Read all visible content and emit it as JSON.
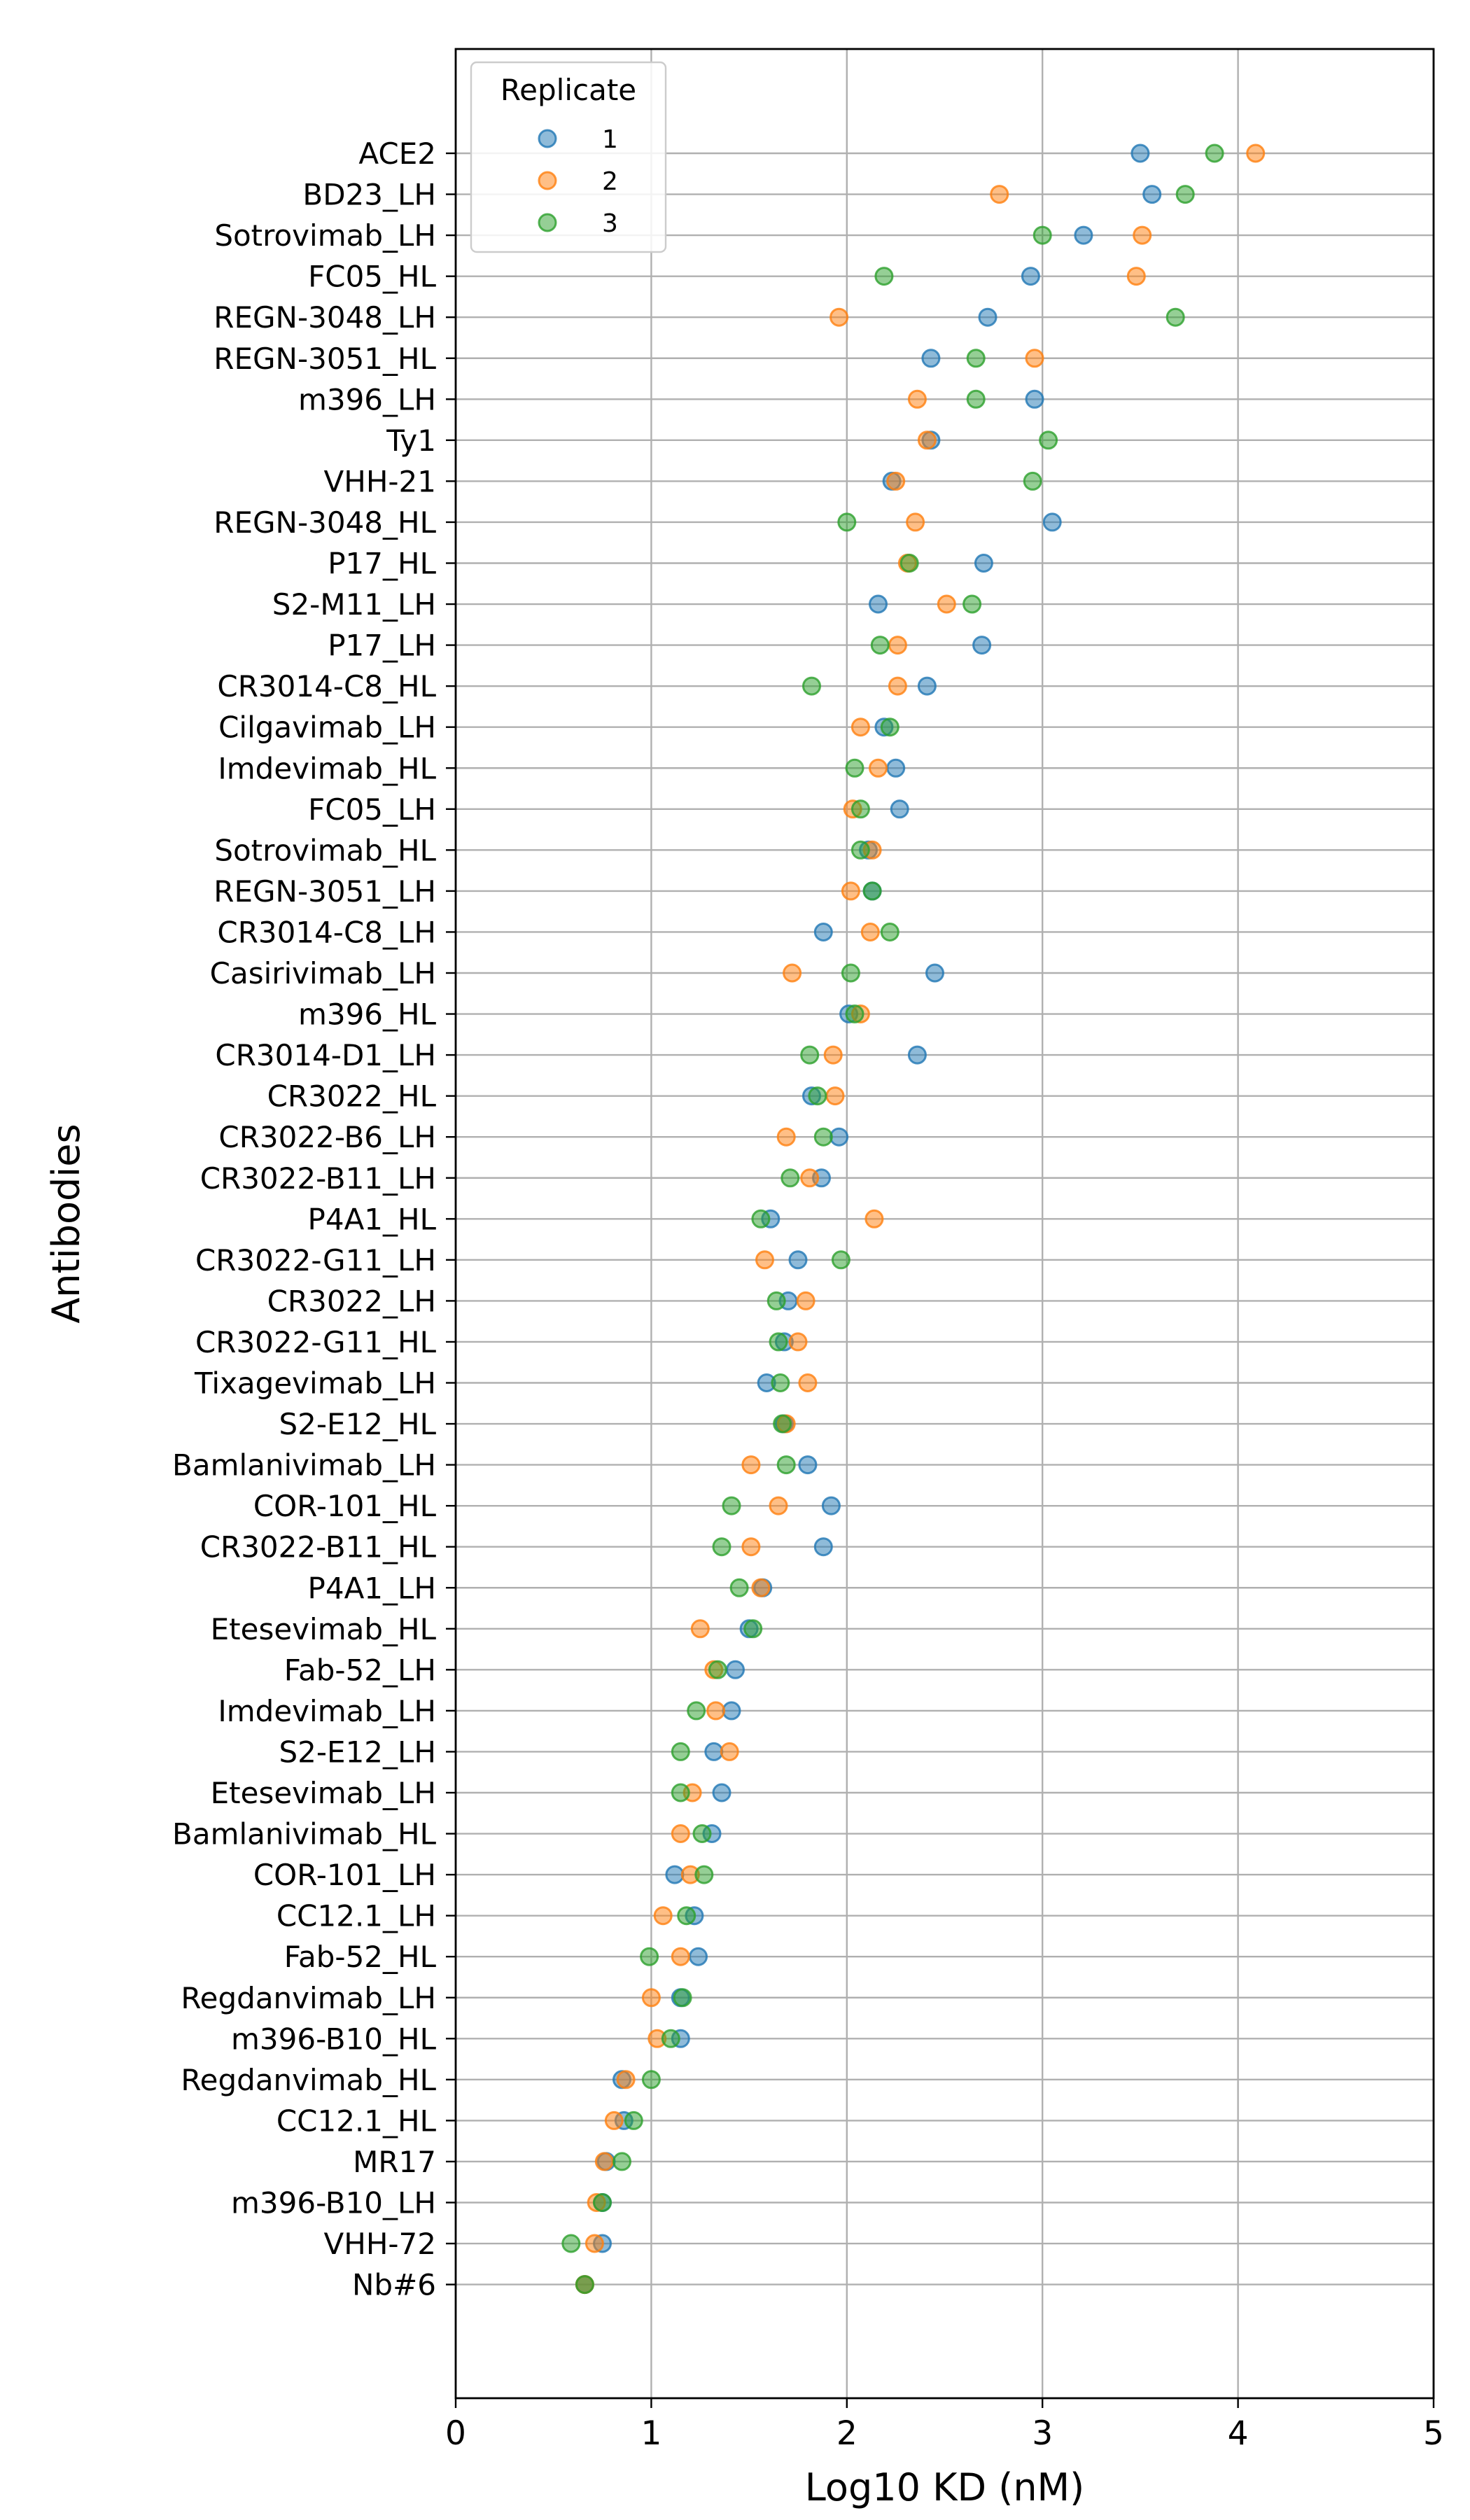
{
  "chart_data": {
    "type": "scatter",
    "title": "",
    "xlabel": "Log10 KD (nM)",
    "ylabel": "Antibodies",
    "xlim": [
      0,
      5
    ],
    "xticks": [
      0,
      1,
      2,
      3,
      4,
      5
    ],
    "grid": true,
    "legend": {
      "title": "Replicate",
      "placement": "top-left"
    },
    "categories": [
      "ACE2",
      "BD23_LH",
      "Sotrovimab_LH",
      "FC05_HL",
      "REGN-3048_LH",
      "REGN-3051_HL",
      "m396_LH",
      "Ty1",
      "VHH-21",
      "REGN-3048_HL",
      "P17_HL",
      "S2-M11_LH",
      "P17_LH",
      "CR3014-C8_HL",
      "Cilgavimab_LH",
      "Imdevimab_HL",
      "FC05_LH",
      "Sotrovimab_HL",
      "REGN-3051_LH",
      "CR3014-C8_LH",
      "Casirivimab_LH",
      "m396_HL",
      "CR3014-D1_LH",
      "CR3022_HL",
      "CR3022-B6_LH",
      "CR3022-B11_LH",
      "P4A1_HL",
      "CR3022-G11_LH",
      "CR3022_LH",
      "CR3022-G11_HL",
      "Tixagevimab_LH",
      "S2-E12_HL",
      "Bamlanivimab_LH",
      "COR-101_HL",
      "CR3022-B11_HL",
      "P4A1_LH",
      "Etesevimab_HL",
      "Fab-52_LH",
      "Imdevimab_LH",
      "S2-E12_LH",
      "Etesevimab_LH",
      "Bamlanivimab_HL",
      "COR-101_LH",
      "CC12.1_LH",
      "Fab-52_HL",
      "Regdanvimab_LH",
      "m396-B10_HL",
      "Regdanvimab_HL",
      "CC12.1_HL",
      "MR17",
      "m396-B10_LH",
      "VHH-72",
      "Nb#6"
    ],
    "series": [
      {
        "name": "1",
        "color": "#1f77b4",
        "values": [
          3.5,
          3.56,
          3.21,
          2.94,
          2.72,
          2.43,
          2.96,
          2.43,
          2.23,
          3.05,
          2.7,
          2.16,
          2.69,
          2.41,
          2.19,
          2.25,
          2.27,
          2.11,
          2.13,
          1.88,
          2.45,
          2.01,
          2.36,
          1.82,
          1.96,
          1.87,
          1.61,
          1.75,
          1.7,
          1.68,
          1.59,
          1.68,
          1.8,
          1.92,
          1.88,
          1.57,
          1.5,
          1.43,
          1.41,
          1.32,
          1.36,
          1.31,
          1.12,
          1.22,
          1.24,
          1.15,
          1.15,
          0.85,
          0.86,
          0.77,
          0.75,
          0.75,
          0.66
        ]
      },
      {
        "name": "2",
        "color": "#ff7f0e",
        "values": [
          4.09,
          2.78,
          3.51,
          3.48,
          1.96,
          2.96,
          2.36,
          2.41,
          2.25,
          2.35,
          2.31,
          2.51,
          2.26,
          2.26,
          2.07,
          2.16,
          2.03,
          2.13,
          2.02,
          2.12,
          1.72,
          2.07,
          1.93,
          1.94,
          1.69,
          1.81,
          2.14,
          1.58,
          1.79,
          1.75,
          1.8,
          1.69,
          1.51,
          1.65,
          1.51,
          1.56,
          1.25,
          1.32,
          1.33,
          1.4,
          1.21,
          1.15,
          1.2,
          1.06,
          1.15,
          1.0,
          1.03,
          0.87,
          0.81,
          0.76,
          0.72,
          0.71,
          0.66
        ]
      },
      {
        "name": "3",
        "color": "#2ca02c",
        "values": [
          3.88,
          3.73,
          3.0,
          2.19,
          3.68,
          2.66,
          2.66,
          3.03,
          2.95,
          2.0,
          2.32,
          2.64,
          2.17,
          1.82,
          2.22,
          2.04,
          2.07,
          2.07,
          2.13,
          2.22,
          2.02,
          2.04,
          1.81,
          1.85,
          1.88,
          1.71,
          1.56,
          1.97,
          1.64,
          1.65,
          1.66,
          1.67,
          1.69,
          1.41,
          1.36,
          1.45,
          1.52,
          1.34,
          1.23,
          1.15,
          1.15,
          1.26,
          1.27,
          1.18,
          0.99,
          1.16,
          1.1,
          1.0,
          0.91,
          0.85,
          0.75,
          0.59,
          0.66
        ]
      }
    ]
  }
}
